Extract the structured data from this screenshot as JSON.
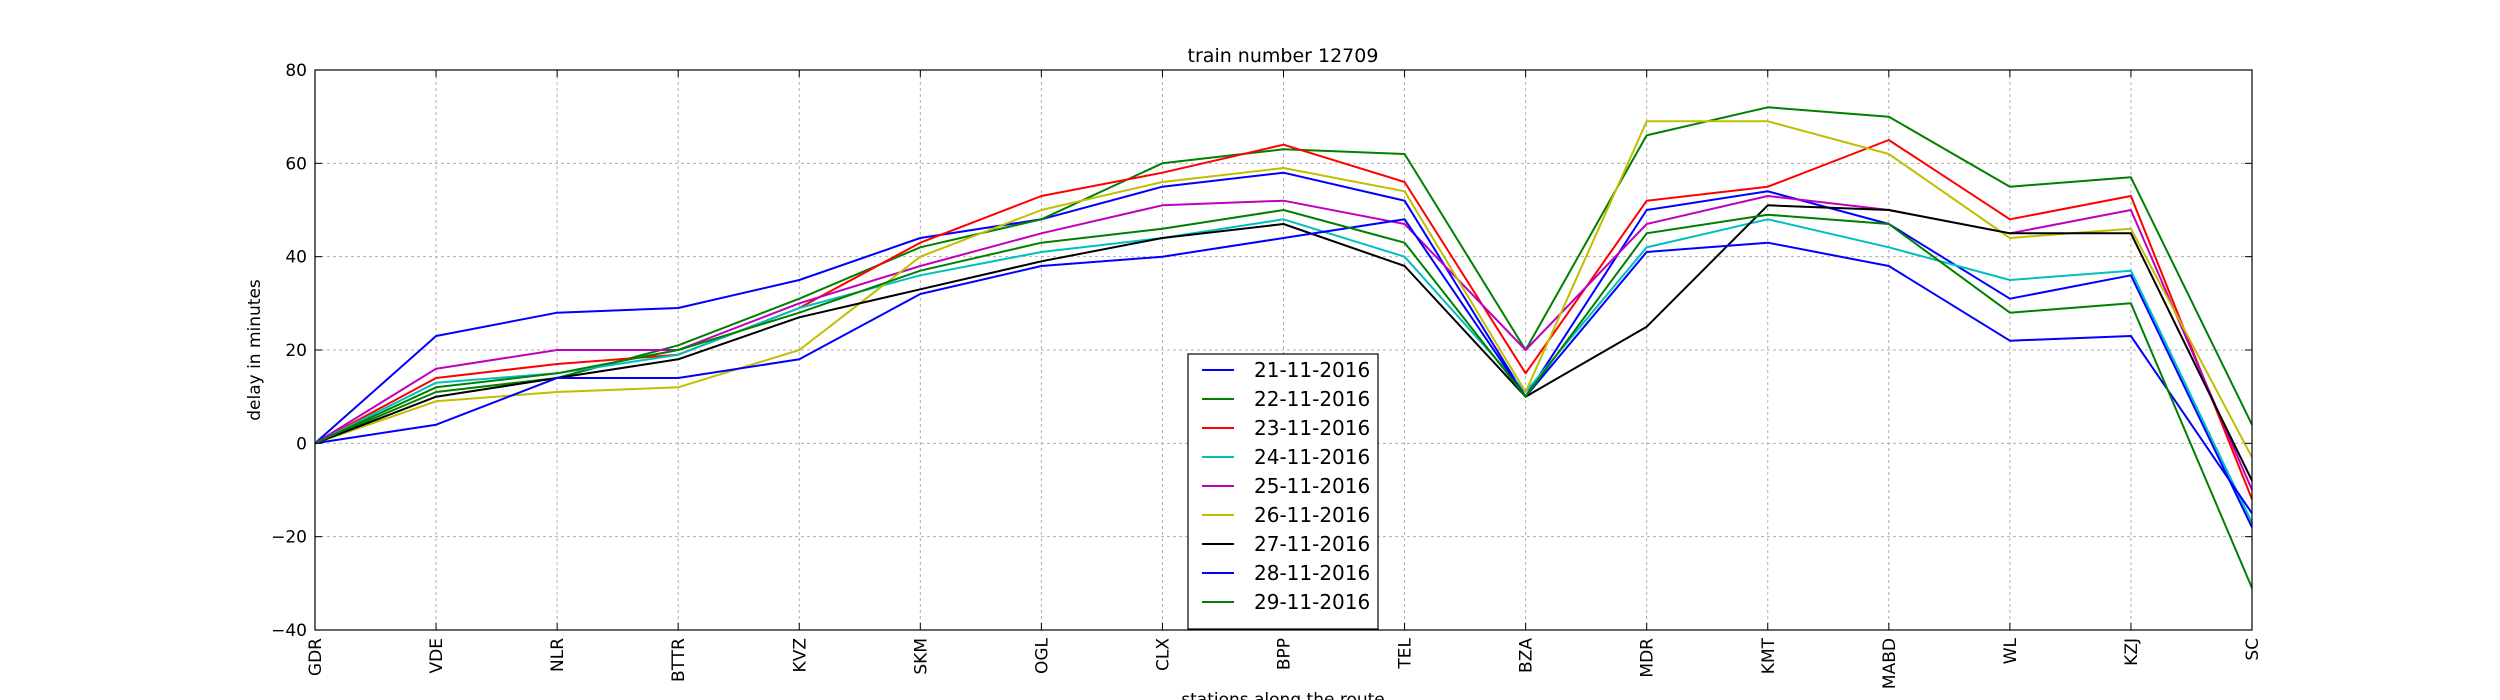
{
  "chart_data": {
    "type": "line",
    "title": "train number 12709",
    "xlabel": "stations along the route",
    "ylabel": "delay in minutes",
    "categories": [
      "GDR",
      "VDE",
      "NLR",
      "BTTR",
      "KVZ",
      "SKM",
      "OGL",
      "CLX",
      "BPP",
      "TEL",
      "BZA",
      "MDR",
      "KMT",
      "MABD",
      "WL",
      "KZJ",
      "SC"
    ],
    "ylim": [
      -40,
      80
    ],
    "yticks": [
      -40,
      -20,
      0,
      20,
      40,
      60,
      80
    ],
    "ytick_labels": [
      "−40",
      "−20",
      "0",
      "20",
      "40",
      "60",
      "80"
    ],
    "grid": true,
    "legend_position": "lower-center",
    "series": [
      {
        "name": "21-11-2016",
        "color": "#0000ff",
        "values": [
          0,
          23,
          28,
          29,
          35,
          44,
          48,
          55,
          58,
          52,
          10,
          50,
          54,
          47,
          31,
          36,
          -18
        ]
      },
      {
        "name": "22-11-2016",
        "color": "#008000",
        "values": [
          0,
          11,
          14,
          21,
          31,
          42,
          48,
          60,
          63,
          62,
          20,
          66,
          72,
          70,
          55,
          57,
          4
        ]
      },
      {
        "name": "23-11-2016",
        "color": "#ff0000",
        "values": [
          0,
          14,
          17,
          19,
          29,
          43,
          53,
          58,
          64,
          56,
          15,
          52,
          55,
          65,
          48,
          53,
          -12
        ]
      },
      {
        "name": "24-11-2016",
        "color": "#00bfbf",
        "values": [
          0,
          13,
          15,
          19,
          29,
          36,
          41,
          44,
          48,
          40,
          11,
          42,
          48,
          42,
          35,
          37,
          -17
        ]
      },
      {
        "name": "25-11-2016",
        "color": "#bf00bf",
        "values": [
          0,
          16,
          20,
          20,
          30,
          38,
          45,
          51,
          52,
          47,
          20,
          47,
          53,
          50,
          45,
          50,
          -10
        ]
      },
      {
        "name": "26-11-2016",
        "color": "#bfbf00",
        "values": [
          0,
          9,
          11,
          12,
          20,
          40,
          50,
          56,
          59,
          54,
          11,
          69,
          69,
          62,
          44,
          46,
          -3
        ]
      },
      {
        "name": "27-11-2016",
        "color": "#000000",
        "values": [
          0,
          10,
          14,
          18,
          27,
          33,
          39,
          44,
          47,
          38,
          10,
          25,
          51,
          50,
          45,
          45,
          -8
        ]
      },
      {
        "name": "28-11-2016",
        "color": "#0000ff",
        "values": [
          0,
          4,
          14,
          14,
          18,
          32,
          38,
          40,
          44,
          48,
          10,
          41,
          43,
          38,
          22,
          23,
          -15
        ]
      },
      {
        "name": "29-11-2016",
        "color": "#008000",
        "values": [
          0,
          12,
          15,
          20,
          28,
          37,
          43,
          46,
          50,
          43,
          10,
          45,
          49,
          47,
          28,
          30,
          -31
        ]
      }
    ]
  }
}
